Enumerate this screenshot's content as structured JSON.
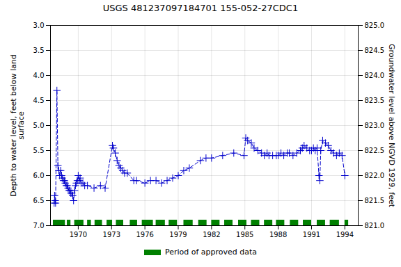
{
  "chart_data": {
    "type": "line",
    "title": "USGS 481237097184701 155-052-27CDC1",
    "ylabel": "Depth to water level, feet below land\nsurface",
    "y2label": "Groundwater level above NGVD 1929, feet",
    "xlim": [
      1967.5,
      1995.2
    ],
    "xticks": [
      1970,
      1973,
      1976,
      1979,
      1982,
      1985,
      1988,
      1991,
      1994
    ],
    "ylim": [
      7.0,
      3.0
    ],
    "yticks": [
      {
        "value": 3.0,
        "label": "3.0"
      },
      3.5,
      {
        "value": 4.0,
        "label": "4.0"
      },
      4.5,
      {
        "value": 5.0,
        "label": "5.0"
      },
      5.5,
      {
        "value": 6.0,
        "label": "6.0"
      },
      6.5,
      {
        "value": 7.0,
        "label": "7.0"
      }
    ],
    "y2lim": [
      821.0,
      825.0
    ],
    "y2ticks": [
      {
        "value": 821.0,
        "label": "821.0"
      },
      821.5,
      {
        "value": 822.0,
        "label": "822.0"
      },
      822.5,
      {
        "value": 823.0,
        "label": "823.0"
      },
      823.5,
      {
        "value": 824.0,
        "label": "824.0"
      },
      824.5,
      {
        "value": 825.0,
        "label": "825.0"
      }
    ],
    "grid": true,
    "legend": "bottom",
    "series": [
      {
        "type": "line",
        "axis": "y",
        "color": "#0000cc",
        "marker": "plus",
        "line_style": "dashed",
        "x": [
          1967.83,
          1967.87,
          1967.92,
          1967.96,
          1968.08,
          1968.17,
          1968.25,
          1968.33,
          1968.42,
          1968.5,
          1968.58,
          1968.67,
          1968.75,
          1968.83,
          1968.92,
          1969.0,
          1969.08,
          1969.17,
          1969.25,
          1969.33,
          1969.42,
          1969.5,
          1969.58,
          1969.67,
          1969.75,
          1969.83,
          1969.92,
          1970.0,
          1970.08,
          1970.17,
          1970.25,
          1970.42,
          1970.58,
          1970.83,
          1971.42,
          1972.0,
          1972.42,
          1973.08,
          1973.17,
          1973.33,
          1973.5,
          1973.67,
          1973.83,
          1974.0,
          1974.17,
          1974.42,
          1975.0,
          1975.25,
          1976.0,
          1976.5,
          1977.0,
          1977.5,
          1978.0,
          1978.5,
          1979.0,
          1979.5,
          1980.0,
          1981.0,
          1981.5,
          1982.0,
          1983.0,
          1984.0,
          1984.92,
          1985.08,
          1985.25,
          1985.58,
          1985.83,
          1986.17,
          1986.5,
          1986.75,
          1987.0,
          1987.17,
          1987.5,
          1987.83,
          1988.0,
          1988.25,
          1988.5,
          1988.83,
          1989.0,
          1989.33,
          1989.67,
          1990.0,
          1990.17,
          1990.33,
          1990.58,
          1990.83,
          1991.0,
          1991.17,
          1991.33,
          1991.5,
          1991.67,
          1991.75,
          1991.83,
          1992.0,
          1992.25,
          1992.5,
          1992.75,
          1993.0,
          1993.25,
          1993.5,
          1993.75,
          1994.0
        ],
        "values": [
          6.55,
          6.4,
          6.5,
          6.55,
          4.3,
          5.8,
          5.9,
          6.0,
          5.9,
          6.0,
          6.05,
          6.1,
          6.1,
          6.15,
          6.2,
          6.2,
          6.25,
          6.3,
          6.3,
          6.35,
          6.35,
          6.4,
          6.5,
          6.3,
          6.2,
          6.15,
          6.1,
          6.0,
          6.1,
          6.05,
          6.15,
          6.15,
          6.2,
          6.2,
          6.25,
          6.2,
          6.25,
          5.4,
          5.45,
          5.55,
          5.7,
          5.8,
          5.85,
          5.9,
          5.95,
          5.95,
          6.1,
          6.1,
          6.15,
          6.1,
          6.1,
          6.15,
          6.1,
          6.05,
          6.0,
          5.9,
          5.85,
          5.7,
          5.65,
          5.65,
          5.6,
          5.55,
          5.6,
          5.25,
          5.3,
          5.35,
          5.45,
          5.5,
          5.55,
          5.6,
          5.55,
          5.6,
          5.6,
          5.6,
          5.6,
          5.55,
          5.6,
          5.55,
          5.55,
          5.6,
          5.55,
          5.5,
          5.45,
          5.4,
          5.45,
          5.5,
          5.5,
          5.45,
          5.5,
          5.45,
          6.0,
          6.1,
          5.5,
          5.3,
          5.35,
          5.4,
          5.5,
          5.55,
          5.6,
          5.55,
          5.6,
          6.0
        ]
      },
      {
        "type": "span",
        "name": "Period of approved data",
        "color": "#008000",
        "starts": [
          1967.75,
          1969.0,
          1969.67,
          1970.83,
          1971.5,
          1972.58,
          1973.42,
          1974.67,
          1975.75,
          1977.0,
          1978.17,
          1979.5,
          1980.83,
          1982.0,
          1983.17,
          1984.42,
          1985.58,
          1986.75,
          1987.83,
          1989.08,
          1990.25,
          1991.5,
          1992.67,
          1994.0
        ],
        "ends": [
          1968.83,
          1969.33,
          1970.5,
          1971.17,
          1972.17,
          1973.08,
          1974.08,
          1975.33,
          1976.75,
          1977.83,
          1978.92,
          1980.33,
          1981.58,
          1982.75,
          1983.92,
          1985.17,
          1986.33,
          1987.5,
          1988.58,
          1989.83,
          1991.0,
          1992.25,
          1993.5,
          1994.33
        ]
      }
    ]
  }
}
